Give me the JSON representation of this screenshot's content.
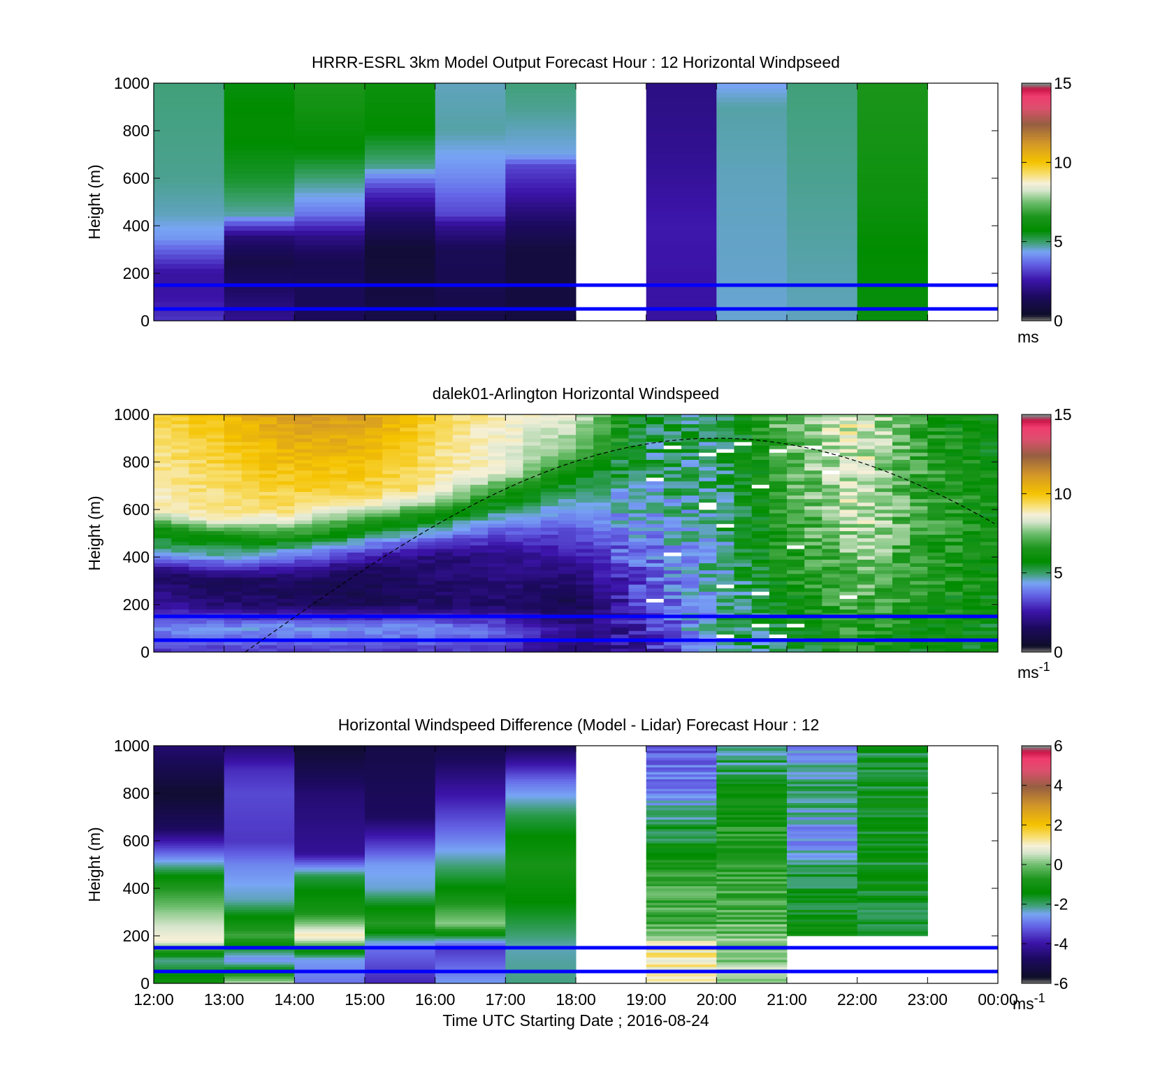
{
  "figure": {
    "xlabel": "Time UTC  Starting Date ; 2016-08-24",
    "xticks": [
      "12:00",
      "13:00",
      "14:00",
      "15:00",
      "16:00",
      "17:00",
      "18:00",
      "19:00",
      "20:00",
      "21:00",
      "22:00",
      "23:00",
      "00:00"
    ],
    "yticks": [
      "0",
      "200",
      "400",
      "600",
      "800",
      "1000"
    ],
    "ylabel": "Height (m)"
  },
  "chart_data": [
    {
      "type": "heatmap",
      "title": "HRRR-ESRL 3km Model Output   Forecast Hour : 12 Horizontal Windpseed",
      "ylabel": "Height (m)",
      "xlabel": "",
      "ylim": [
        0,
        1000
      ],
      "xlim_hours": [
        12,
        24
      ],
      "hlines_m": [
        150,
        50
      ],
      "colorbar": {
        "range": [
          0,
          15
        ],
        "ticks": [
          "0",
          "5",
          "10",
          "15"
        ],
        "unit": "ms",
        "sup": ""
      },
      "columns": [
        {
          "hour": 12,
          "profile": [
            [
              0,
              3
            ],
            [
              100,
              2.5
            ],
            [
              200,
              2.4
            ],
            [
              300,
              3.6
            ],
            [
              350,
              4.2
            ],
            [
              450,
              4.6
            ],
            [
              600,
              4.8
            ],
            [
              1000,
              4.9
            ]
          ]
        },
        {
          "hour": 13,
          "profile": [
            [
              0,
              2.2
            ],
            [
              250,
              1.0
            ],
            [
              350,
              1.8
            ],
            [
              400,
              3.2
            ],
            [
              450,
              4.7
            ],
            [
              600,
              5.4
            ],
            [
              800,
              5.8
            ],
            [
              1000,
              5.6
            ]
          ]
        },
        {
          "hour": 14,
          "profile": [
            [
              0,
              1.4
            ],
            [
              250,
              1.2
            ],
            [
              350,
              2.0
            ],
            [
              450,
              3.8
            ],
            [
              550,
              4.6
            ],
            [
              700,
              5.6
            ],
            [
              850,
              6.1
            ],
            [
              1000,
              6.5
            ]
          ]
        },
        {
          "hour": 15,
          "profile": [
            [
              0,
              1.0
            ],
            [
              300,
              0.6
            ],
            [
              450,
              1.8
            ],
            [
              550,
              3.0
            ],
            [
              650,
              4.8
            ],
            [
              800,
              5.7
            ],
            [
              1000,
              6.1
            ]
          ]
        },
        {
          "hour": 16,
          "profile": [
            [
              0,
              1.0
            ],
            [
              300,
              1.3
            ],
            [
              400,
              2.2
            ],
            [
              450,
              3.2
            ],
            [
              600,
              4.0
            ],
            [
              800,
              4.7
            ],
            [
              1000,
              4.6
            ]
          ]
        },
        {
          "hour": 17,
          "profile": [
            [
              0,
              0.8
            ],
            [
              300,
              0.8
            ],
            [
              450,
              1.8
            ],
            [
              550,
              2.6
            ],
            [
              650,
              3.2
            ],
            [
              700,
              4.4
            ],
            [
              900,
              4.8
            ],
            [
              1000,
              4.9
            ]
          ]
        },
        {
          "hour": 18,
          "profile": []
        },
        {
          "hour": 19,
          "profile": [
            [
              0,
              2.4
            ],
            [
              400,
              2.6
            ],
            [
              700,
              2.2
            ],
            [
              1000,
              2.0
            ]
          ]
        },
        {
          "hour": 20,
          "profile": [
            [
              0,
              4.5
            ],
            [
              600,
              4.6
            ],
            [
              900,
              4.7
            ],
            [
              1000,
              4.3
            ]
          ]
        },
        {
          "hour": 21,
          "profile": [
            [
              0,
              4.6
            ],
            [
              300,
              4.7
            ],
            [
              600,
              4.8
            ],
            [
              1000,
              4.9
            ]
          ]
        },
        {
          "hour": 22,
          "profile": [
            [
              0,
              5.6
            ],
            [
              300,
              5.7
            ],
            [
              500,
              6.1
            ],
            [
              1000,
              6.5
            ]
          ]
        },
        {
          "hour": 23,
          "profile": []
        }
      ]
    },
    {
      "type": "heatmap",
      "title": "dalek01-Arlington  Horizontal Windspeed",
      "ylabel": "Height (m)",
      "xlabel": "",
      "ylim": [
        0,
        1000
      ],
      "xlim_hours": [
        12,
        24
      ],
      "hlines_m": [
        150,
        50
      ],
      "curve": {
        "peak_hour": 20,
        "peak_height_m": 900,
        "zero_hour": 13.3
      },
      "colorbar": {
        "range": [
          0,
          15
        ],
        "ticks": [
          "0",
          "5",
          "10",
          "15"
        ],
        "unit": "ms",
        "sup": "-1"
      },
      "columns": [
        {
          "hour": 12.0,
          "profile": [
            [
              0,
              3
            ],
            [
              100,
              4
            ],
            [
              200,
              2.4
            ],
            [
              330,
              1.6
            ],
            [
              420,
              4.5
            ],
            [
              520,
              6.2
            ],
            [
              600,
              8.8
            ],
            [
              1000,
              9.5
            ]
          ]
        },
        {
          "hour": 13.0,
          "profile": [
            [
              0,
              3
            ],
            [
              100,
              4.2
            ],
            [
              200,
              1.8
            ],
            [
              300,
              1.2
            ],
            [
              400,
              4.5
            ],
            [
              490,
              6.3
            ],
            [
              560,
              9
            ],
            [
              1000,
              10.2
            ]
          ]
        },
        {
          "hour": 14.0,
          "profile": [
            [
              0,
              3
            ],
            [
              100,
              4.3
            ],
            [
              200,
              1.4
            ],
            [
              300,
              1.5
            ],
            [
              430,
              4.5
            ],
            [
              500,
              7
            ],
            [
              600,
              9.3
            ],
            [
              1000,
              11.2
            ]
          ]
        },
        {
          "hour": 15.0,
          "profile": [
            [
              0,
              3
            ],
            [
              100,
              4.2
            ],
            [
              200,
              1.2
            ],
            [
              350,
              1.4
            ],
            [
              470,
              4.5
            ],
            [
              560,
              7
            ],
            [
              640,
              9.4
            ],
            [
              1000,
              11
            ]
          ]
        },
        {
          "hour": 16.0,
          "profile": [
            [
              0,
              3
            ],
            [
              100,
              4.2
            ],
            [
              200,
              1.5
            ],
            [
              400,
              1.8
            ],
            [
              520,
              4.6
            ],
            [
              600,
              6.8
            ],
            [
              680,
              9
            ],
            [
              1000,
              9.6
            ]
          ]
        },
        {
          "hour": 17.0,
          "profile": [
            [
              0,
              3
            ],
            [
              100,
              3.5
            ],
            [
              200,
              1.6
            ],
            [
              420,
              2.2
            ],
            [
              560,
              4.2
            ],
            [
              680,
              6.5
            ],
            [
              760,
              8.5
            ],
            [
              1000,
              8.8
            ]
          ]
        },
        {
          "hour": 18.0,
          "profile": [
            [
              0,
              1.5
            ],
            [
              100,
              2
            ],
            [
              200,
              1.0
            ],
            [
              400,
              2.5
            ],
            [
              600,
              4.2
            ],
            [
              760,
              5.8
            ],
            [
              850,
              7.5
            ],
            [
              1000,
              8.4
            ]
          ]
        },
        {
          "hour": 19.0,
          "profile": [
            [
              0,
              2.5
            ],
            [
              200,
              3.2
            ],
            [
              400,
              3.8
            ],
            [
              600,
              4.5
            ],
            [
              800,
              5
            ],
            [
              1000,
              5.5
            ]
          ]
        },
        {
          "hour": 20.0,
          "profile": [
            [
              0,
              4.8
            ],
            [
              300,
              4.6
            ],
            [
              600,
              4.8
            ],
            [
              1000,
              5
            ]
          ]
        },
        {
          "hour": 21.0,
          "profile": [
            [
              0,
              5.2
            ],
            [
              300,
              6.2
            ],
            [
              600,
              6.8
            ],
            [
              1000,
              7.5
            ]
          ]
        },
        {
          "hour": 22.0,
          "profile": [
            [
              0,
              6.5
            ],
            [
              300,
              7.4
            ],
            [
              600,
              8.4
            ],
            [
              1000,
              8.6
            ]
          ]
        },
        {
          "hour": 23.0,
          "profile": [
            [
              0,
              5.8
            ],
            [
              300,
              6.4
            ],
            [
              600,
              6.8
            ],
            [
              1000,
              6.4
            ]
          ]
        },
        {
          "hour": 24.0,
          "profile": [
            [
              0,
              5.6
            ],
            [
              300,
              6
            ],
            [
              600,
              6
            ],
            [
              1000,
              5.8
            ]
          ]
        }
      ]
    },
    {
      "type": "heatmap",
      "title": "Horizontal Windspeed Difference (Model - Lidar) Forecast Hour : 12",
      "ylabel": "Height (m)",
      "xlabel": "Time UTC  Starting Date ; 2016-08-24",
      "ylim": [
        0,
        1000
      ],
      "xlim_hours": [
        12,
        24
      ],
      "hlines_m": [
        150,
        50
      ],
      "colorbar": {
        "range": [
          -6,
          6
        ],
        "ticks": [
          "-6",
          "-4",
          "-2",
          "0",
          "2",
          "4",
          "6"
        ],
        "unit": "ms",
        "sup": "-1"
      },
      "columns": [
        {
          "hour": 12,
          "profile": [
            [
              0,
              -1
            ],
            [
              100,
              -2.2
            ],
            [
              180,
              1.0
            ],
            [
              300,
              0.2
            ],
            [
              420,
              -0.9
            ],
            [
              520,
              -2.6
            ],
            [
              650,
              -4.8
            ],
            [
              800,
              -5.6
            ],
            [
              1000,
              -4.6
            ]
          ]
        },
        {
          "hour": 13,
          "profile": [
            [
              0,
              0.5
            ],
            [
              100,
              -2.8
            ],
            [
              200,
              -0.4
            ],
            [
              350,
              -2.3
            ],
            [
              500,
              -2.8
            ],
            [
              600,
              -3.6
            ],
            [
              800,
              -3.4
            ],
            [
              900,
              -3.7
            ],
            [
              1000,
              -4.6
            ]
          ]
        },
        {
          "hour": 14,
          "profile": [
            [
              0,
              -3
            ],
            [
              100,
              -2.6
            ],
            [
              200,
              1.2
            ],
            [
              300,
              -0.9
            ],
            [
              450,
              -1.8
            ],
            [
              550,
              -4.2
            ],
            [
              800,
              -4.6
            ],
            [
              1000,
              -5.6
            ]
          ]
        },
        {
          "hour": 15,
          "profile": [
            [
              0,
              -3.8
            ],
            [
              150,
              -3
            ],
            [
              250,
              -0.6
            ],
            [
              400,
              -2.4
            ],
            [
              500,
              -2.6
            ],
            [
              700,
              -4.8
            ],
            [
              1000,
              -5.2
            ]
          ]
        },
        {
          "hour": 16,
          "profile": [
            [
              0,
              -2.6
            ],
            [
              150,
              -3.6
            ],
            [
              250,
              0.2
            ],
            [
              400,
              -1.4
            ],
            [
              600,
              -2.8
            ],
            [
              800,
              -4.0
            ],
            [
              1000,
              -5.2
            ]
          ]
        },
        {
          "hour": 17,
          "profile": [
            [
              0,
              -2.1
            ],
            [
              150,
              -2.3
            ],
            [
              300,
              -1.6
            ],
            [
              500,
              -0.9
            ],
            [
              700,
              -1.8
            ],
            [
              850,
              -3.0
            ],
            [
              1000,
              -5.0
            ]
          ]
        },
        {
          "hour": 18,
          "profile": []
        },
        {
          "hour": 19,
          "profile": [
            [
              0,
              1.0
            ],
            [
              150,
              1.2
            ],
            [
              250,
              -0.4
            ],
            [
              400,
              -0.3
            ],
            [
              600,
              -1.6
            ],
            [
              800,
              -2.6
            ],
            [
              1000,
              -3.4
            ]
          ]
        },
        {
          "hour": 20,
          "profile": [
            [
              0,
              0.3
            ],
            [
              150,
              0.2
            ],
            [
              300,
              -0.4
            ],
            [
              500,
              -0.6
            ],
            [
              700,
              -0.9
            ],
            [
              900,
              -1.9
            ],
            [
              1000,
              -2.4
            ]
          ]
        },
        {
          "hour": 21,
          "profile": [
            [
              200,
              -1.3
            ],
            [
              400,
              -1.6
            ],
            [
              600,
              -2.8
            ],
            [
              800,
              -2.0
            ],
            [
              1000,
              -2.6
            ]
          ]
        },
        {
          "hour": 22,
          "profile": [
            [
              200,
              -1.8
            ],
            [
              300,
              -1.6
            ],
            [
              600,
              -1.5
            ],
            [
              1000,
              -1.7
            ]
          ]
        },
        {
          "hour": 23,
          "profile": []
        }
      ]
    }
  ]
}
